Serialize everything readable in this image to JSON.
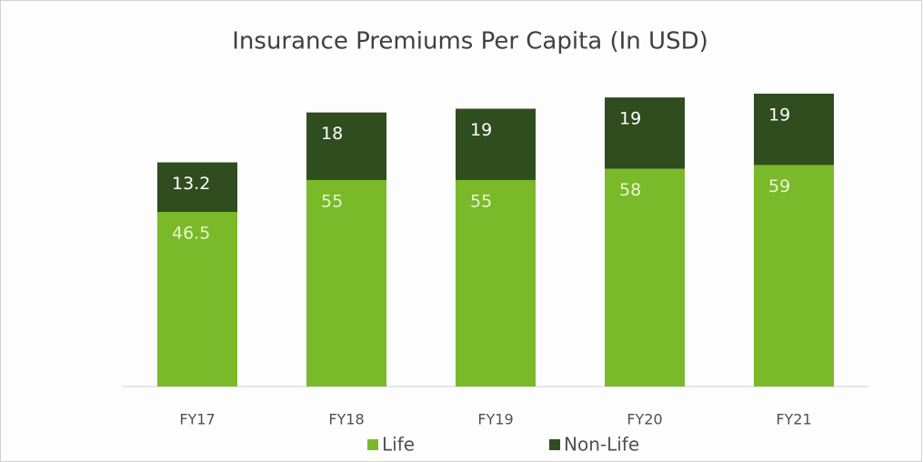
{
  "chart_data": {
    "type": "stacked_bar",
    "title": "Insurance Premiums Per Capita (In USD)",
    "categories": [
      "FY17",
      "FY18",
      "FY19",
      "FY20",
      "FY21"
    ],
    "series": [
      {
        "name": "Life",
        "color": "#7ab929",
        "values": [
          46.5,
          55,
          55,
          58,
          59
        ]
      },
      {
        "name": "Non-Life",
        "color": "#2f4d1e",
        "values": [
          13.2,
          18,
          19,
          19,
          19
        ]
      }
    ]
  }
}
